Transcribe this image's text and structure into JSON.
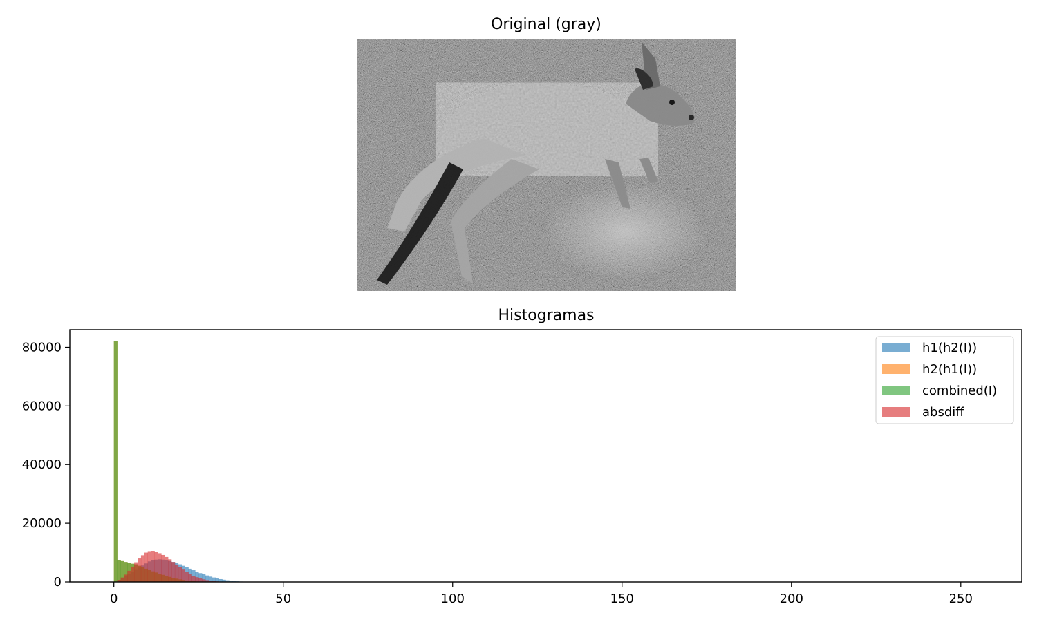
{
  "figure": {
    "image_panel_title": "Original (gray)"
  },
  "chart_data": {
    "type": "bar",
    "title": "Histogramas",
    "xlabel": "",
    "ylabel": "",
    "xlim": [
      -13,
      268
    ],
    "ylim": [
      0,
      86000
    ],
    "x_ticks": [
      0,
      50,
      100,
      150,
      200,
      250
    ],
    "y_ticks": [
      0,
      20000,
      40000,
      60000,
      80000
    ],
    "grid": false,
    "legend_position": "top-right",
    "bin_width": 1,
    "series": [
      {
        "name": "h1(h2(I))",
        "color": "#1f77b4",
        "x": [
          0,
          1,
          2,
          3,
          4,
          5,
          6,
          7,
          8,
          9,
          10,
          11,
          12,
          13,
          14,
          15,
          16,
          17,
          18,
          19,
          20,
          21,
          22,
          23,
          24,
          25,
          26,
          27,
          28,
          29,
          30,
          31,
          32,
          33,
          34,
          35,
          36,
          37,
          38,
          39,
          40
        ],
        "values": [
          0,
          600,
          1200,
          1900,
          2600,
          3300,
          4100,
          4900,
          5600,
          6300,
          7000,
          7400,
          7600,
          7700,
          7600,
          7400,
          7100,
          6800,
          6400,
          6000,
          5500,
          5000,
          4500,
          4000,
          3500,
          3000,
          2600,
          2200,
          1800,
          1500,
          1200,
          950,
          750,
          560,
          420,
          300,
          210,
          140,
          90,
          50,
          25
        ]
      },
      {
        "name": "h2(h1(I))",
        "color": "#ff7f0e",
        "x": [
          0,
          1,
          2,
          3,
          4,
          5,
          6,
          7,
          8,
          9,
          10,
          11,
          12,
          13,
          14,
          15,
          16,
          17,
          18,
          19,
          20,
          21,
          22,
          23,
          24,
          25,
          26,
          27,
          28
        ],
        "values": [
          82000,
          7400,
          7100,
          6800,
          6500,
          6200,
          6000,
          5500,
          5000,
          4500,
          4000,
          3600,
          3200,
          2800,
          2400,
          2000,
          1700,
          1400,
          1100,
          850,
          650,
          480,
          340,
          230,
          150,
          90,
          50,
          25,
          10
        ]
      },
      {
        "name": "combined(I)",
        "color": "#2ca02c",
        "x": [
          0,
          1,
          2,
          3,
          4,
          5,
          6,
          7,
          8,
          9,
          10,
          11,
          12,
          13,
          14,
          15,
          16,
          17,
          18,
          19,
          20,
          21,
          22,
          23,
          24,
          25,
          26,
          27,
          28
        ],
        "values": [
          82000,
          7400,
          7100,
          6800,
          6500,
          6200,
          6000,
          5500,
          5000,
          4500,
          4000,
          3600,
          3200,
          2800,
          2400,
          2000,
          1700,
          1400,
          1100,
          850,
          650,
          480,
          340,
          230,
          150,
          90,
          50,
          25,
          10
        ]
      },
      {
        "name": "absdiff",
        "color": "#d62728",
        "x": [
          0,
          1,
          2,
          3,
          4,
          5,
          6,
          7,
          8,
          9,
          10,
          11,
          12,
          13,
          14,
          15,
          16,
          17,
          18,
          19,
          20,
          21,
          22,
          23,
          24,
          25,
          26,
          27,
          28,
          29,
          30,
          31,
          32,
          33,
          34,
          35
        ],
        "values": [
          0,
          700,
          1500,
          2500,
          3800,
          5200,
          6700,
          8000,
          9100,
          10000,
          10500,
          10600,
          10300,
          9800,
          9200,
          8500,
          7700,
          6800,
          5900,
          5000,
          4200,
          3400,
          2700,
          2100,
          1600,
          1200,
          880,
          620,
          420,
          280,
          180,
          110,
          60,
          30,
          15,
          5
        ]
      }
    ]
  }
}
